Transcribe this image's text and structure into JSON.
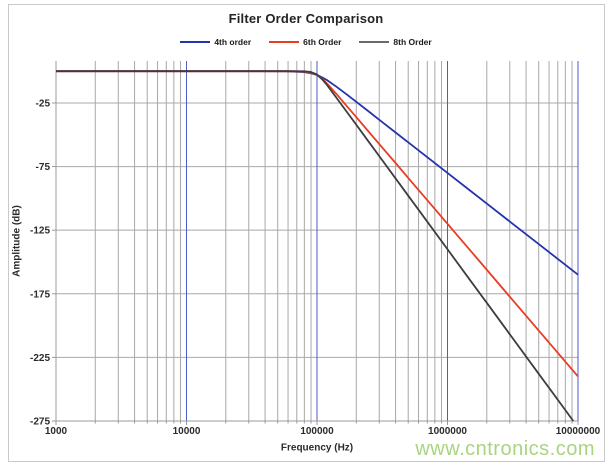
{
  "watermark": {
    "text": "www.cntronics.com",
    "color": "#a9d480"
  },
  "chart_data": {
    "type": "line",
    "title": "Filter Order Comparison",
    "xlabel": "Frequency (Hz)",
    "ylabel": "Amplitude (dB)",
    "x_scale": "log",
    "x_range": [
      1000,
      10000000
    ],
    "y_range": [
      -275,
      8
    ],
    "grid_on": true,
    "legend_position": "top",
    "x_ticks": [
      {
        "value": 1000,
        "label": "1000"
      },
      {
        "value": 10000,
        "label": "10000"
      },
      {
        "value": 100000,
        "label": "100000"
      },
      {
        "value": 1000000,
        "label": "1000000"
      },
      {
        "value": 10000000,
        "label": "10000000"
      }
    ],
    "x_minor_multiples": [
      2,
      3,
      4,
      5,
      6,
      7,
      8,
      9
    ],
    "y_ticks": [
      {
        "value": -25,
        "label": "-25"
      },
      {
        "value": -75,
        "label": "-75"
      },
      {
        "value": -125,
        "label": "-125"
      },
      {
        "value": -175,
        "label": "-175"
      },
      {
        "value": -225,
        "label": "-225"
      },
      {
        "value": -275,
        "label": "-275"
      }
    ],
    "grid": {
      "minor_color": "#a8a8a8",
      "major_x_color": "#4a5ec8",
      "major_y_color": "#a8a8a8",
      "axis_color": "#9b9b9b",
      "tick_label_color": "#2b2b2b"
    },
    "cutoff_hz": 100000,
    "series": [
      {
        "name": "4th order",
        "color": "#2433ae",
        "points": [
          [
            1000,
            0
          ],
          [
            2000,
            0
          ],
          [
            5000,
            0
          ],
          [
            10000,
            0
          ],
          [
            20000,
            0
          ],
          [
            40000,
            0
          ],
          [
            60000,
            -0.1
          ],
          [
            80000,
            -0.7
          ],
          [
            90000,
            -1.6
          ],
          [
            100000,
            -3.0
          ],
          [
            110000,
            -5.0
          ],
          [
            120000,
            -7.2
          ],
          [
            140000,
            -12.0
          ],
          [
            170000,
            -18.5
          ],
          [
            200000,
            -24.1
          ],
          [
            250000,
            -31.8
          ],
          [
            300000,
            -38.2
          ],
          [
            400000,
            -48.2
          ],
          [
            500000,
            -55.9
          ],
          [
            700000,
            -67.6
          ],
          [
            1000000,
            -80.0
          ],
          [
            1500000,
            -94.1
          ],
          [
            2000000,
            -104.1
          ],
          [
            3000000,
            -118.2
          ],
          [
            5000000,
            -135.9
          ],
          [
            7000000,
            -147.6
          ],
          [
            10000000,
            -160.0
          ]
        ]
      },
      {
        "name": "6th Order",
        "color": "#e83d22",
        "points": [
          [
            1000,
            0
          ],
          [
            2000,
            0
          ],
          [
            5000,
            0
          ],
          [
            10000,
            0
          ],
          [
            20000,
            0
          ],
          [
            40000,
            0
          ],
          [
            60000,
            0
          ],
          [
            80000,
            -0.3
          ],
          [
            90000,
            -1.1
          ],
          [
            100000,
            -3.0
          ],
          [
            110000,
            -6.2
          ],
          [
            120000,
            -10.0
          ],
          [
            140000,
            -17.6
          ],
          [
            170000,
            -27.7
          ],
          [
            200000,
            -36.1
          ],
          [
            250000,
            -47.8
          ],
          [
            300000,
            -57.3
          ],
          [
            400000,
            -72.2
          ],
          [
            500000,
            -83.9
          ],
          [
            700000,
            -101.4
          ],
          [
            1000000,
            -120.0
          ],
          [
            1500000,
            -141.1
          ],
          [
            2000000,
            -156.1
          ],
          [
            3000000,
            -177.3
          ],
          [
            5000000,
            -203.9
          ],
          [
            7000000,
            -221.4
          ],
          [
            10000000,
            -240.0
          ]
        ]
      },
      {
        "name": "8th Order",
        "color": "#3d3d3d",
        "legend_color": "#6a6a6a",
        "points": [
          [
            1000,
            0
          ],
          [
            2000,
            0
          ],
          [
            5000,
            0
          ],
          [
            10000,
            0
          ],
          [
            20000,
            0
          ],
          [
            40000,
            0
          ],
          [
            60000,
            0
          ],
          [
            80000,
            -0.1
          ],
          [
            90000,
            -0.7
          ],
          [
            100000,
            -2.6
          ],
          [
            110000,
            -6.6
          ],
          [
            120000,
            -11.2
          ],
          [
            140000,
            -20.5
          ],
          [
            170000,
            -32.3
          ],
          [
            200000,
            -42.1
          ],
          [
            250000,
            -55.7
          ],
          [
            300000,
            -66.8
          ],
          [
            400000,
            -84.3
          ],
          [
            500000,
            -97.9
          ],
          [
            700000,
            -118.3
          ],
          [
            1000000,
            -140.0
          ],
          [
            1500000,
            -164.7
          ],
          [
            2000000,
            -182.1
          ],
          [
            3000000,
            -206.8
          ],
          [
            5000000,
            -237.9
          ],
          [
            7000000,
            -258.3
          ],
          [
            10000000,
            -280.0
          ]
        ]
      }
    ]
  }
}
